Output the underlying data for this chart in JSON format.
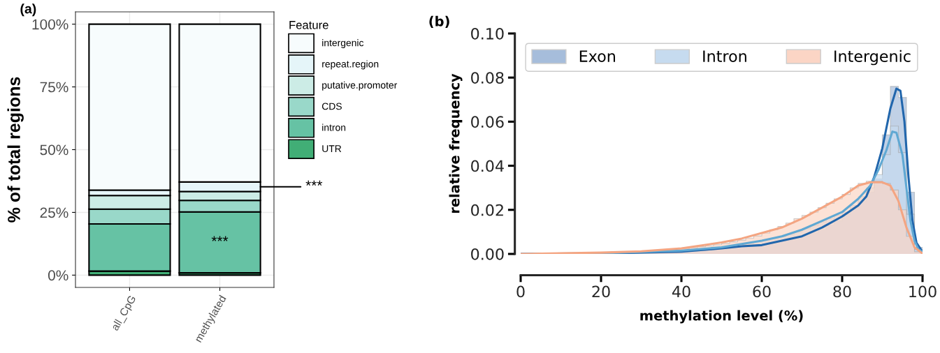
{
  "chart_data": [
    {
      "type": "bar",
      "title": "(a)",
      "ylabel": "% of total regions",
      "categories": [
        "all_CpG",
        "methylated"
      ],
      "stacked": true,
      "legend": "right",
      "legend_title": "Feature",
      "grid": true,
      "ylim": [
        -4.9,
        104.9
      ],
      "yticks": [
        {
          "value": 0,
          "label": "0%"
        },
        {
          "value": 25,
          "label": "25%"
        },
        {
          "value": 50,
          "label": "50%"
        },
        {
          "value": 75,
          "label": "75%"
        },
        {
          "value": 100,
          "label": "100%"
        }
      ],
      "series": [
        {
          "name": "UTR",
          "color": "#41ae76",
          "values": [
            1.6,
            0.9
          ]
        },
        {
          "name": "intron",
          "color": "#66c2a4",
          "values": [
            18.8,
            24.3
          ]
        },
        {
          "name": "CDS",
          "color": "#99d8c9",
          "values": [
            5.9,
            4.6
          ]
        },
        {
          "name": "putative.promoter",
          "color": "#ccece6",
          "values": [
            5.4,
            3.5
          ]
        },
        {
          "name": "repeat.region",
          "color": "#e5f5f9",
          "values": [
            2.2,
            3.8
          ]
        },
        {
          "name": "intergenic",
          "color": "#f7fcfd",
          "values": [
            66.1,
            62.9
          ]
        }
      ],
      "annotations": [
        "***",
        "***"
      ]
    },
    {
      "type": "histogram",
      "title": "(b)",
      "xlabel": "methylation level (%)",
      "ylabel": "relative frequency",
      "legend": "top",
      "grid": false,
      "xlim": [
        0,
        100
      ],
      "xticks": [
        0,
        20,
        40,
        60,
        80,
        100
      ],
      "ylim": [
        0,
        0.1
      ],
      "yticks": [
        {
          "value": 0,
          "label": "0.00"
        },
        {
          "value": 0.02,
          "label": "0.02"
        },
        {
          "value": 0.04,
          "label": "0.04"
        },
        {
          "value": 0.06,
          "label": "0.06"
        },
        {
          "value": 0.08,
          "label": "0.08"
        },
        {
          "value": 0.1,
          "label": "0.10"
        }
      ],
      "bins": [
        0,
        2,
        4,
        6,
        8,
        10,
        12,
        14,
        16,
        18,
        20,
        22,
        24,
        26,
        28,
        30,
        32,
        34,
        36,
        38,
        40,
        42,
        44,
        46,
        48,
        50,
        52,
        54,
        56,
        58,
        60,
        62,
        64,
        66,
        68,
        70,
        72,
        74,
        76,
        78,
        80,
        82,
        84,
        86,
        88,
        90,
        92,
        94,
        96,
        98,
        100
      ],
      "series": [
        {
          "name": "Exon",
          "color": "#a6bddb",
          "values": [
            0,
            0,
            0,
            0,
            0,
            0,
            0,
            0.0001,
            0.0001,
            0.0002,
            0.0002,
            0.0003,
            0.0003,
            0.0004,
            0.0005,
            0.0006,
            0.0007,
            0.0008,
            0.0009,
            0.001,
            0.0011,
            0.0013,
            0.0015,
            0.0018,
            0.0021,
            0.0025,
            0.003,
            0.0034,
            0.0037,
            0.004,
            0.0045,
            0.005,
            0.006,
            0.0065,
            0.0075,
            0.0082,
            0.0095,
            0.011,
            0.013,
            0.015,
            0.018,
            0.021,
            0.024,
            0.028,
            0.034,
            0.054,
            0.076,
            0.071,
            0.028,
            0.003
          ]
        },
        {
          "name": "Intron",
          "color": "#c6dbef",
          "values": [
            0,
            0,
            0,
            0,
            0,
            0.0001,
            0.0001,
            0.0001,
            0.0002,
            0.0002,
            0.0003,
            0.0003,
            0.0004,
            0.0005,
            0.0006,
            0.0007,
            0.0008,
            0.001,
            0.0011,
            0.0013,
            0.0015,
            0.0017,
            0.002,
            0.0023,
            0.0027,
            0.003,
            0.0036,
            0.0042,
            0.0048,
            0.0055,
            0.006,
            0.0068,
            0.0078,
            0.0088,
            0.01,
            0.0115,
            0.013,
            0.0145,
            0.016,
            0.0175,
            0.019,
            0.022,
            0.026,
            0.03,
            0.036,
            0.045,
            0.058,
            0.046,
            0.018,
            0.002
          ]
        },
        {
          "name": "Intergenic",
          "color": "#fbd5c5",
          "values": [
            0.0001,
            0.0002,
            0.0002,
            0.0002,
            0.0003,
            0.0003,
            0.0004,
            0.0004,
            0.0005,
            0.0006,
            0.0006,
            0.0007,
            0.0008,
            0.0009,
            0.001,
            0.0012,
            0.0014,
            0.0016,
            0.0019,
            0.0022,
            0.0025,
            0.0029,
            0.0033,
            0.0037,
            0.0042,
            0.0048,
            0.0055,
            0.0063,
            0.0072,
            0.0082,
            0.0095,
            0.011,
            0.0125,
            0.014,
            0.016,
            0.0175,
            0.019,
            0.021,
            0.023,
            0.025,
            0.027,
            0.03,
            0.032,
            0.033,
            0.033,
            0.032,
            0.029,
            0.02,
            0.008,
            0.001
          ]
        },
        {
          "type": "line",
          "color": "#2166ac",
          "x": [
            0,
            20,
            40,
            50,
            55,
            60,
            65,
            70,
            75,
            80,
            84,
            86,
            88,
            90,
            92,
            93.5,
            94.5,
            95.5,
            96.5,
            97.5,
            98.5,
            100
          ],
          "values": [
            0,
            0.0002,
            0.001,
            0.0025,
            0.0035,
            0.004,
            0.006,
            0.008,
            0.012,
            0.017,
            0.022,
            0.026,
            0.035,
            0.048,
            0.066,
            0.075,
            0.074,
            0.06,
            0.035,
            0.015,
            0.005,
            0.001
          ]
        },
        {
          "type": "line",
          "color": "#5fa8d3",
          "x": [
            0,
            20,
            40,
            50,
            55,
            60,
            65,
            70,
            75,
            80,
            84,
            87,
            89,
            91,
            92.5,
            93.5,
            95,
            96,
            97,
            98,
            99,
            100
          ],
          "values": [
            0,
            0.0003,
            0.0015,
            0.003,
            0.0045,
            0.006,
            0.008,
            0.011,
            0.015,
            0.019,
            0.025,
            0.031,
            0.038,
            0.047,
            0.0555,
            0.055,
            0.045,
            0.03,
            0.015,
            0.006,
            0.002,
            0.001
          ]
        },
        {
          "type": "line",
          "color": "#f4a582",
          "x": [
            0,
            10,
            20,
            30,
            40,
            50,
            55,
            60,
            65,
            70,
            75,
            80,
            84,
            87,
            90,
            92,
            94,
            96,
            98,
            100
          ],
          "values": [
            0,
            0.0003,
            0.0006,
            0.0012,
            0.0025,
            0.0052,
            0.007,
            0.0095,
            0.012,
            0.016,
            0.021,
            0.026,
            0.031,
            0.0325,
            0.0325,
            0.031,
            0.024,
            0.012,
            0.003,
            0.0002
          ]
        }
      ]
    }
  ]
}
